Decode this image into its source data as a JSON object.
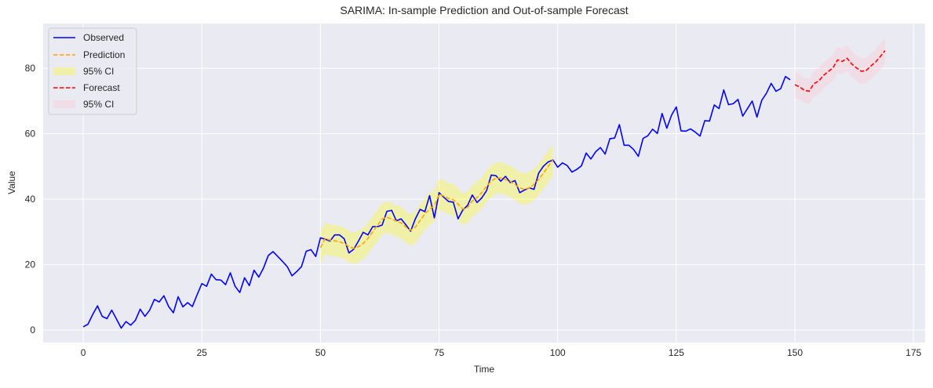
{
  "chart_data": {
    "type": "line",
    "title": "SARIMA: In-sample Prediction and Out-of-sample Forecast",
    "xlabel": "Time",
    "ylabel": "Value",
    "xlim": [
      -8.45,
      177.45
    ],
    "ylim": [
      -3.8,
      93.7
    ],
    "xticks": [
      0,
      25,
      50,
      75,
      100,
      125,
      150,
      175
    ],
    "yticks": [
      0,
      20,
      40,
      60,
      80
    ],
    "grid": true,
    "legend_position": "top-left",
    "background_color": "#eaeaf2",
    "observed": {
      "name": "Observed",
      "color": "#0000ff",
      "x_start": 0,
      "values": [
        1.0,
        1.8,
        4.8,
        7.4,
        4.2,
        3.5,
        6.1,
        3.4,
        0.6,
        2.6,
        1.5,
        3.0,
        6.4,
        4.2,
        6.1,
        9.4,
        8.6,
        10.5,
        7.2,
        5.3,
        10.2,
        7.1,
        8.4,
        7.2,
        10.8,
        14.2,
        13.4,
        17.1,
        15.4,
        15.3,
        13.9,
        17.5,
        13.4,
        11.5,
        16.0,
        13.6,
        18.3,
        16.2,
        19.0,
        22.8,
        24.0,
        22.5,
        21.0,
        19.4,
        16.6,
        17.9,
        19.4,
        24.1,
        24.6,
        22.5,
        28.2,
        27.8,
        27.2,
        29.1,
        29.1,
        27.9,
        23.6,
        24.7,
        27.2,
        29.9,
        29.1,
        31.6,
        31.6,
        32.1,
        36.3,
        36.6,
        33.4,
        34.0,
        32.2,
        30.2,
        34.0,
        36.9,
        36.2,
        41.1,
        34.3,
        42.0,
        40.6,
        39.3,
        39.1,
        34.0,
        36.7,
        38.1,
        41.3,
        39.0,
        40.4,
        42.6,
        47.4,
        47.2,
        45.5,
        47.0,
        45.1,
        45.7,
        42.0,
        42.8,
        43.5,
        43.0,
        48.0,
        50.1,
        51.4,
        52.0,
        49.8,
        51.1,
        50.3,
        48.3,
        49.1,
        50.2,
        54.1,
        52.3,
        54.5,
        55.8,
        53.8,
        58.5,
        58.7,
        62.8,
        56.5,
        56.5,
        55.2,
        53.1,
        58.6,
        59.4,
        61.4,
        60.1,
        66.2,
        61.7,
        65.7,
        68.2,
        60.9,
        60.8,
        61.5,
        60.5,
        59.3,
        64.0,
        63.9,
        68.8,
        67.7,
        73.4,
        68.9,
        69.2,
        70.5,
        65.4,
        67.7,
        70.0,
        65.1,
        70.2,
        72.4,
        75.4,
        73.0,
        73.8,
        77.5,
        76.5
      ]
    },
    "prediction": {
      "name": "Prediction",
      "color": "#ffa500",
      "x_start": 50,
      "values": [
        25.2,
        28.0,
        27.5,
        27.3,
        27.0,
        26.5,
        25.5,
        25.0,
        25.5,
        26.5,
        28.0,
        30.0,
        32.0,
        34.0,
        34.5,
        34.0,
        33.3,
        32.8,
        31.5,
        30.5,
        31.5,
        33.5,
        35.5,
        37.0,
        38.0,
        41.5,
        41.0,
        40.2,
        39.8,
        38.5,
        37.0,
        37.5,
        39.5,
        40.5,
        42.0,
        44.0,
        45.5,
        46.5,
        46.5,
        46.0,
        45.5,
        44.5,
        43.5,
        43.0,
        43.5,
        44.5,
        46.0,
        48.0,
        50.0,
        52.0
      ],
      "ci_name": "95% CI",
      "ci_color": "#ffff00",
      "ci_lower": [
        20.4,
        23.2,
        22.7,
        22.5,
        22.2,
        21.7,
        20.7,
        20.2,
        20.7,
        21.7,
        23.2,
        25.2,
        27.2,
        29.2,
        29.7,
        29.2,
        28.5,
        28.0,
        26.7,
        25.7,
        26.7,
        28.7,
        30.7,
        32.2,
        33.2,
        36.7,
        36.2,
        35.4,
        35.0,
        33.7,
        32.2,
        32.7,
        34.7,
        35.7,
        37.2,
        39.2,
        40.7,
        41.7,
        41.7,
        41.2,
        40.7,
        39.7,
        38.7,
        38.2,
        38.7,
        39.7,
        41.2,
        43.2,
        45.2,
        47.2
      ],
      "ci_upper": [
        30.0,
        32.8,
        32.3,
        32.1,
        31.8,
        31.3,
        30.3,
        29.8,
        30.3,
        31.3,
        32.8,
        34.8,
        36.8,
        38.8,
        39.3,
        38.8,
        38.1,
        37.6,
        36.3,
        35.3,
        36.3,
        38.3,
        40.3,
        41.8,
        42.8,
        46.3,
        45.8,
        45.0,
        44.6,
        43.3,
        41.8,
        42.3,
        44.3,
        45.3,
        46.8,
        48.8,
        50.3,
        51.3,
        51.3,
        50.8,
        50.3,
        49.3,
        48.3,
        47.8,
        48.3,
        49.3,
        50.8,
        52.8,
        54.8,
        56.8
      ]
    },
    "forecast": {
      "name": "Forecast",
      "color": "#ff0000",
      "x_start": 150,
      "values": [
        75.0,
        74.3,
        73.3,
        73.0,
        75.3,
        76.1,
        77.8,
        79.0,
        80.1,
        82.6,
        82.1,
        83.1,
        81.3,
        80.1,
        79.1,
        79.3,
        80.7,
        81.9,
        83.6,
        85.4
      ],
      "ci_name": "95% CI",
      "ci_color": "#ffc0cb",
      "ci_lower": [
        71.1,
        70.4,
        69.4,
        69.1,
        71.4,
        72.2,
        73.9,
        75.1,
        76.2,
        78.7,
        78.2,
        79.2,
        77.4,
        76.2,
        75.2,
        75.4,
        76.8,
        78.0,
        79.7,
        81.5
      ],
      "ci_upper": [
        78.9,
        78.2,
        77.2,
        76.9,
        79.2,
        80.0,
        81.7,
        82.9,
        84.0,
        86.5,
        86.0,
        87.0,
        85.2,
        84.0,
        83.0,
        83.2,
        84.6,
        85.8,
        87.5,
        89.3
      ]
    },
    "legend": [
      "Observed",
      "Prediction",
      "95% CI",
      "Forecast",
      "95% CI"
    ]
  }
}
